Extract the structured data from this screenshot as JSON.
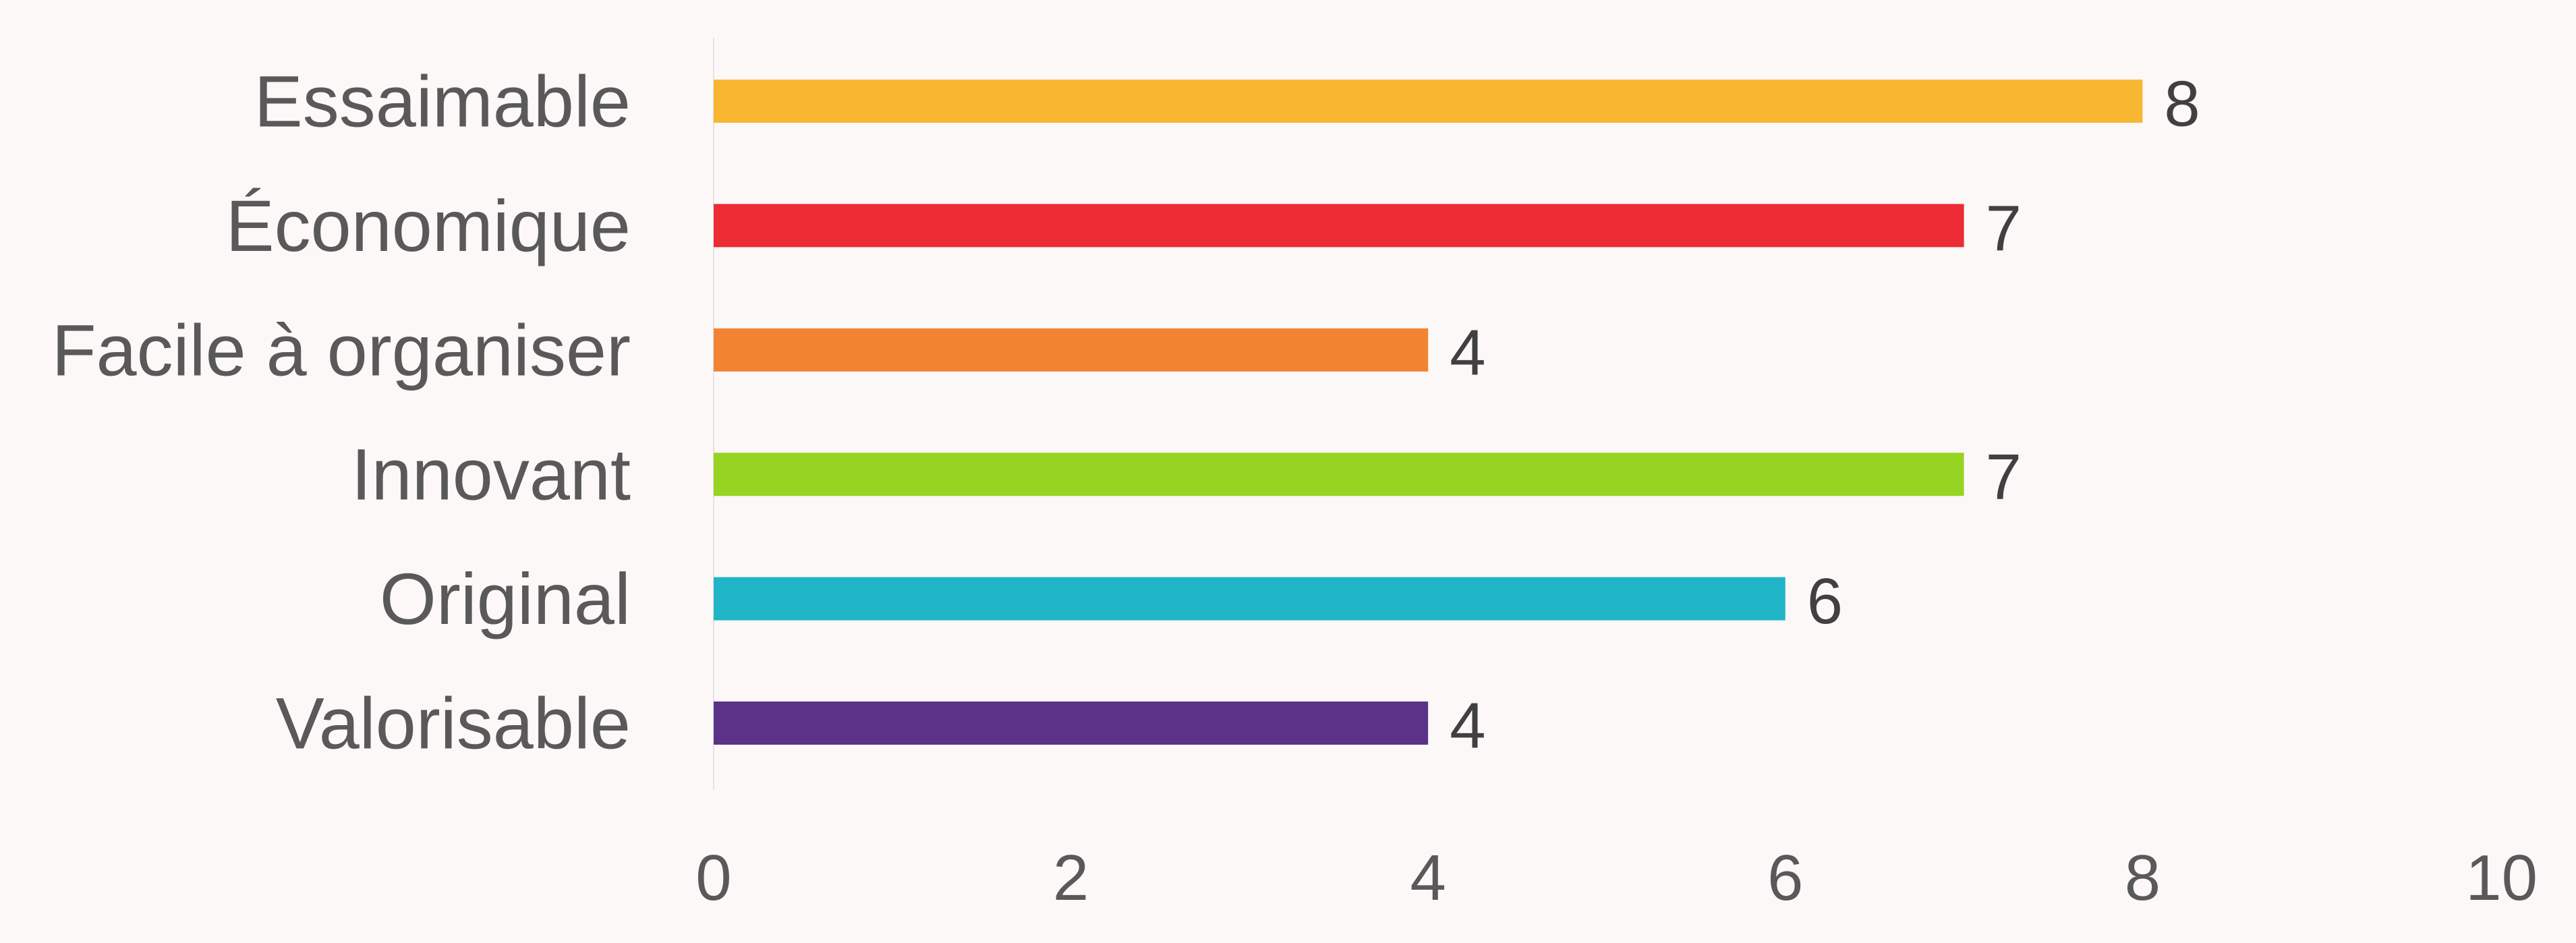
{
  "chart_data": {
    "type": "bar",
    "orientation": "horizontal",
    "title": "",
    "xlabel": "",
    "ylabel": "",
    "categories": [
      "Essaimable",
      "Économique",
      "Facile à organiser",
      "Innovant",
      "Original",
      "Valorisable"
    ],
    "values": [
      8,
      7,
      4,
      7,
      6,
      4
    ],
    "colors": [
      "#f7b731",
      "#ec2b34",
      "#f28431",
      "#97d322",
      "#1fb5c6",
      "#5b3288"
    ],
    "xlim": [
      0,
      10
    ],
    "xticks": [
      "0",
      "2",
      "4",
      "6",
      "8",
      "10"
    ],
    "grid": false,
    "legend": "none",
    "data_labels": true
  }
}
